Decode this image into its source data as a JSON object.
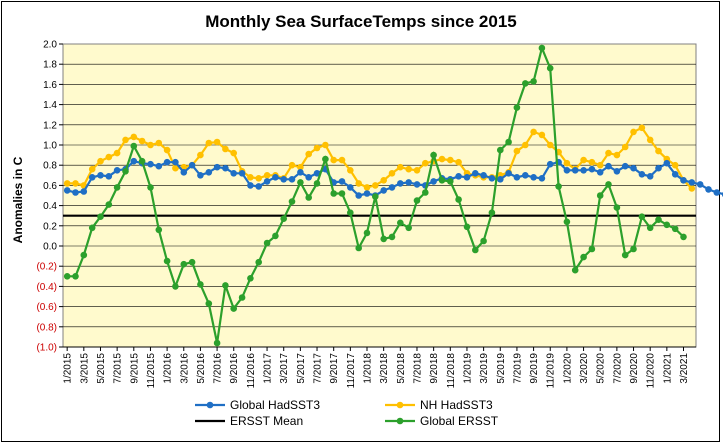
{
  "chart_data": {
    "type": "line",
    "title": "Monthly Sea SurfaceTemps since 2015",
    "xlabel": "",
    "ylabel": "Anomalies in C",
    "ylim": [
      -1.0,
      2.0
    ],
    "y_step": 0.2,
    "y_ticks": [
      "2.0",
      "1.8",
      "1.6",
      "1.4",
      "1.2",
      "1.0",
      "0.8",
      "0.6",
      "0.4",
      "0.2",
      "0.0",
      "(0.2)",
      "(0.4)",
      "(0.6)",
      "(0.8)",
      "(1.0)"
    ],
    "negative_tick_color": "#cc0000",
    "plot_background": "#fffacd",
    "x_tick_labels": [
      "1/2015",
      "3/2015",
      "5/2015",
      "7/2015",
      "9/2015",
      "11/2015",
      "1/2016",
      "3/2016",
      "5/2016",
      "7/2016",
      "9/2016",
      "11/2016",
      "1/2017",
      "3/2017",
      "5/2017",
      "7/2017",
      "9/2017",
      "11/2017",
      "1/2018",
      "3/2018",
      "5/2018",
      "7/2018",
      "9/2018",
      "11/2018",
      "1/2019",
      "3/2019",
      "5/2019",
      "7/2019",
      "9/2019",
      "11/2019",
      "1/2020",
      "3/2020",
      "5/2020",
      "7/2020",
      "9/2020",
      "11/2020",
      "1/2021",
      "3/2021"
    ],
    "series": [
      {
        "name": "Global HadSST3",
        "color": "#1f6fc5",
        "values": [
          0.55,
          0.53,
          0.54,
          0.68,
          0.7,
          0.69,
          0.75,
          0.76,
          0.84,
          0.82,
          0.81,
          0.79,
          0.83,
          0.83,
          0.73,
          0.8,
          0.7,
          0.73,
          0.78,
          0.77,
          0.72,
          0.72,
          0.6,
          0.59,
          0.64,
          0.68,
          0.66,
          0.66,
          0.73,
          0.68,
          0.72,
          0.76,
          0.63,
          0.64,
          0.58,
          0.5,
          0.52,
          0.5,
          0.55,
          0.58,
          0.62,
          0.63,
          0.61,
          0.6,
          0.64,
          0.67,
          0.66,
          0.69,
          0.68,
          0.72,
          0.7,
          0.67,
          0.66,
          0.72,
          0.68,
          0.7,
          0.68,
          0.67,
          0.81,
          0.83,
          0.75,
          0.75,
          0.75,
          0.76,
          0.73,
          0.79,
          0.74,
          0.79,
          0.77,
          0.71,
          0.69,
          0.77,
          0.82,
          0.71,
          0.65,
          0.63,
          0.61,
          0.56,
          0.53,
          0.51
        ]
      },
      {
        "name": "NH HadSST3",
        "color": "#ffc000",
        "values": [
          0.62,
          0.62,
          0.6,
          0.76,
          0.84,
          0.88,
          0.92,
          1.05,
          1.08,
          1.04,
          1.0,
          1.02,
          0.95,
          0.77,
          0.78,
          0.8,
          0.9,
          1.02,
          1.03,
          0.96,
          0.92,
          0.74,
          0.68,
          0.67,
          0.7,
          0.7,
          0.67,
          0.8,
          0.78,
          0.91,
          0.97,
          1.0,
          0.85,
          0.85,
          0.75,
          0.62,
          0.58,
          0.6,
          0.65,
          0.72,
          0.78,
          0.76,
          0.75,
          0.82,
          0.84,
          0.86,
          0.85,
          0.83,
          0.72,
          0.7,
          0.68,
          0.68,
          0.7,
          0.73,
          0.94,
          1.0,
          1.13,
          1.1,
          1.0,
          0.93,
          0.82,
          0.76,
          0.85,
          0.83,
          0.8,
          0.92,
          0.9,
          0.98,
          1.13,
          1.17,
          1.05,
          0.94,
          0.86,
          0.8,
          0.65,
          0.57
        ]
      },
      {
        "name": "ERSST Mean",
        "color": "#000000",
        "constant": 0.3
      },
      {
        "name": "Global ERSST",
        "color": "#2ca02c",
        "values": [
          -0.3,
          -0.3,
          -0.09,
          0.18,
          0.29,
          0.41,
          0.58,
          0.74,
          0.99,
          0.84,
          0.58,
          0.16,
          -0.15,
          -0.4,
          -0.18,
          -0.16,
          -0.38,
          -0.57,
          -0.96,
          -0.39,
          -0.62,
          -0.51,
          -0.32,
          -0.16,
          0.03,
          0.1,
          0.27,
          0.44,
          0.63,
          0.48,
          0.62,
          0.86,
          0.52,
          0.52,
          0.33,
          -0.02,
          0.13,
          0.49,
          0.07,
          0.09,
          0.23,
          0.18,
          0.45,
          0.53,
          0.9,
          0.65,
          0.64,
          0.46,
          0.19,
          -0.04,
          0.05,
          0.33,
          0.95,
          1.03,
          1.37,
          1.61,
          1.63,
          1.96,
          1.76,
          0.59,
          0.24,
          -0.24,
          -0.11,
          -0.03,
          0.5,
          0.61,
          0.38,
          -0.09,
          -0.03,
          0.29,
          0.18,
          0.26,
          0.21,
          0.17,
          0.09
        ]
      }
    ],
    "legend": [
      {
        "label": "Global HadSST3",
        "series": 0
      },
      {
        "label": "NH HadSST3",
        "series": 1
      },
      {
        "label": "ERSST Mean",
        "series": 2
      },
      {
        "label": "Global ERSST",
        "series": 3
      }
    ],
    "legend_position": "bottom"
  }
}
